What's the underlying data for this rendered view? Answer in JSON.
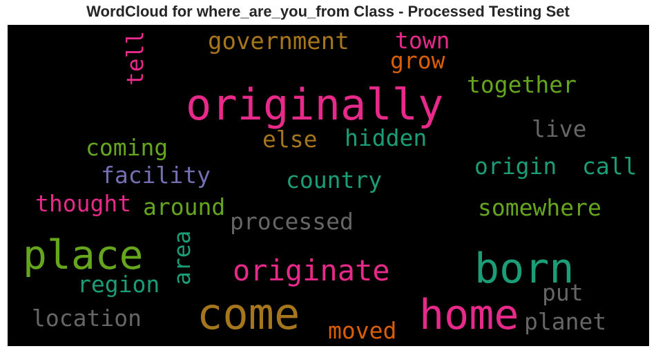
{
  "title": "WordCloud for where_are_you_from Class - Processed Testing Set",
  "chart_data": {
    "type": "wordcloud",
    "title": "WordCloud for where_are_you_from Class - Processed Testing Set",
    "background": "#000000",
    "palette": [
      "#e7298a",
      "#1b9e77",
      "#66a61e",
      "#a6761d",
      "#d95f02",
      "#7570b3",
      "#666666"
    ],
    "words": [
      {
        "text": "originally",
        "color": "#e7298a",
        "rotated": false
      },
      {
        "text": "born",
        "color": "#1b9e77",
        "rotated": false
      },
      {
        "text": "come",
        "color": "#a6761d",
        "rotated": false
      },
      {
        "text": "home",
        "color": "#e7298a",
        "rotated": false
      },
      {
        "text": "place",
        "color": "#66a61e",
        "rotated": false
      },
      {
        "text": "originate",
        "color": "#e7298a",
        "rotated": false
      },
      {
        "text": "government",
        "color": "#a6761d",
        "rotated": false
      },
      {
        "text": "town",
        "color": "#e7298a",
        "rotated": false
      },
      {
        "text": "grow",
        "color": "#d95f02",
        "rotated": false
      },
      {
        "text": "together",
        "color": "#66a61e",
        "rotated": false
      },
      {
        "text": "tell",
        "color": "#e7298a",
        "rotated": true
      },
      {
        "text": "live",
        "color": "#666666",
        "rotated": false
      },
      {
        "text": "else",
        "color": "#a6761d",
        "rotated": false
      },
      {
        "text": "hidden",
        "color": "#1b9e77",
        "rotated": false
      },
      {
        "text": "coming",
        "color": "#66a61e",
        "rotated": false
      },
      {
        "text": "facility",
        "color": "#7570b3",
        "rotated": false
      },
      {
        "text": "origin",
        "color": "#1b9e77",
        "rotated": false
      },
      {
        "text": "call",
        "color": "#1b9e77",
        "rotated": false
      },
      {
        "text": "country",
        "color": "#1b9e77",
        "rotated": false
      },
      {
        "text": "thought",
        "color": "#e7298a",
        "rotated": false
      },
      {
        "text": "around",
        "color": "#66a61e",
        "rotated": false
      },
      {
        "text": "somewhere",
        "color": "#66a61e",
        "rotated": false
      },
      {
        "text": "processed",
        "color": "#666666",
        "rotated": false
      },
      {
        "text": "area",
        "color": "#1b9e77",
        "rotated": true
      },
      {
        "text": "region",
        "color": "#1b9e77",
        "rotated": false
      },
      {
        "text": "put",
        "color": "#666666",
        "rotated": false
      },
      {
        "text": "location",
        "color": "#666666",
        "rotated": false
      },
      {
        "text": "planet",
        "color": "#666666",
        "rotated": false
      },
      {
        "text": "moved",
        "color": "#d95f02",
        "rotated": false
      }
    ]
  }
}
